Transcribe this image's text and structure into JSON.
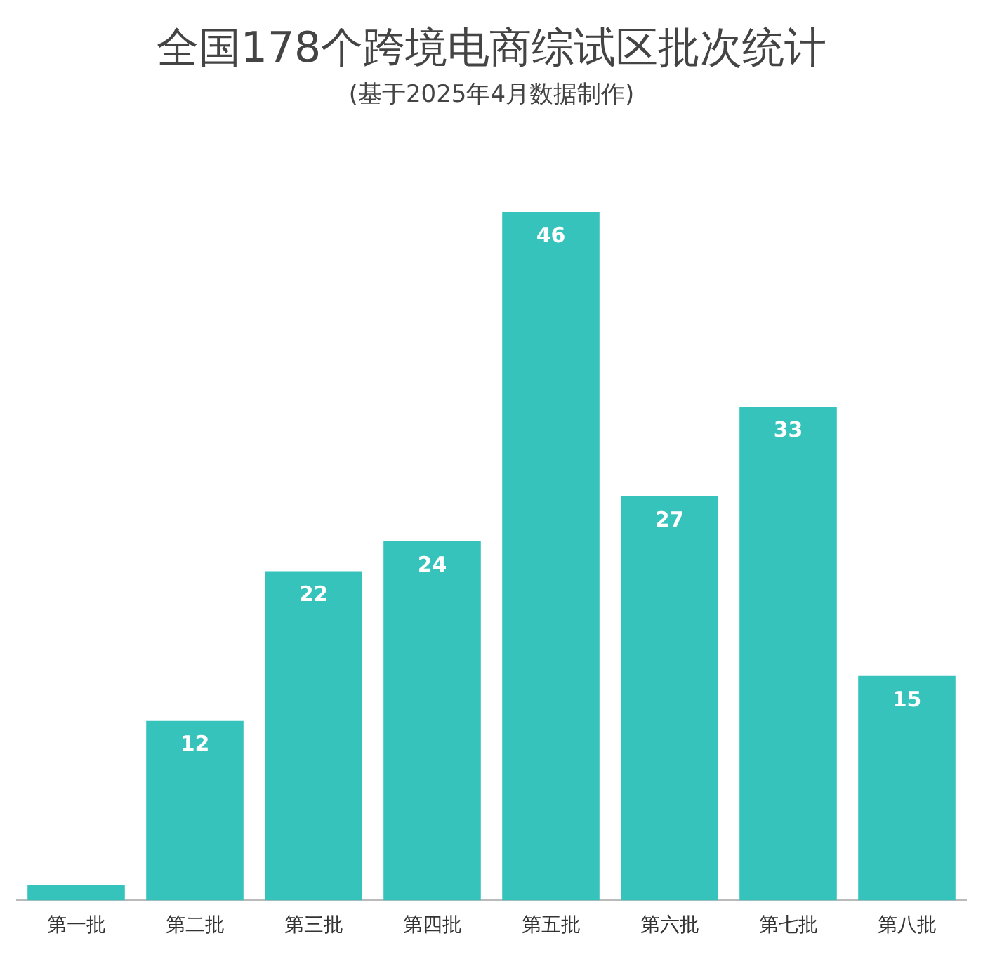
{
  "chart_data": {
    "type": "bar",
    "title": "全国178个跨境电商综试区批次统计",
    "subtitle": "(基于2025年4月数据制作)",
    "categories": [
      "第一批",
      "第二批",
      "第三批",
      "第四批",
      "第五批",
      "第六批",
      "第七批",
      "第八批"
    ],
    "values": [
      1,
      12,
      22,
      24,
      46,
      27,
      33,
      15
    ],
    "value_labels": [
      null,
      "12",
      "22",
      "24",
      "46",
      "27",
      "33",
      "15"
    ],
    "color": "#36c3bc",
    "grid": false,
    "legend": false
  }
}
